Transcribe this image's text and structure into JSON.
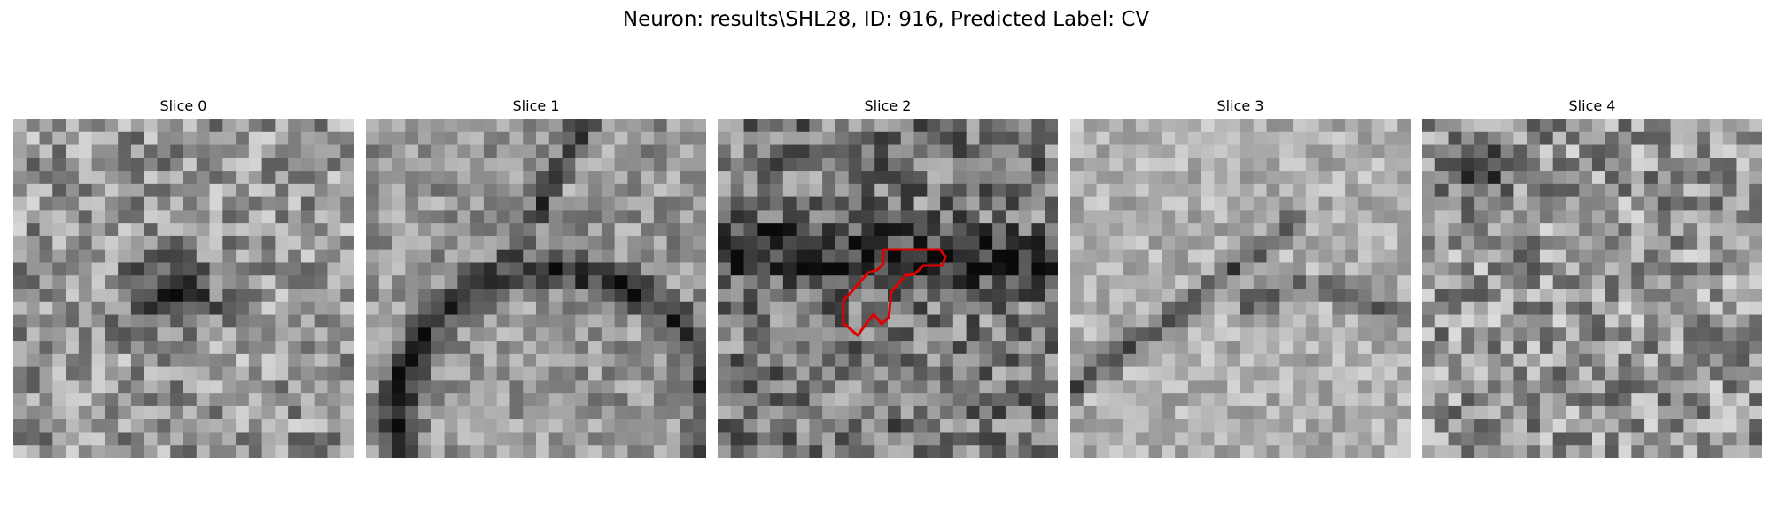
{
  "figure": {
    "title": "Neuron: results\\SHL28, ID: 916, Predicted Label: CV"
  },
  "panels": [
    {
      "title": "Slice 0"
    },
    {
      "title": "Slice 1"
    },
    {
      "title": "Slice 2"
    },
    {
      "title": "Slice 3"
    },
    {
      "title": "Slice 4"
    }
  ],
  "style": {
    "contour_color": "#e00000",
    "colormap": "grayscale"
  }
}
